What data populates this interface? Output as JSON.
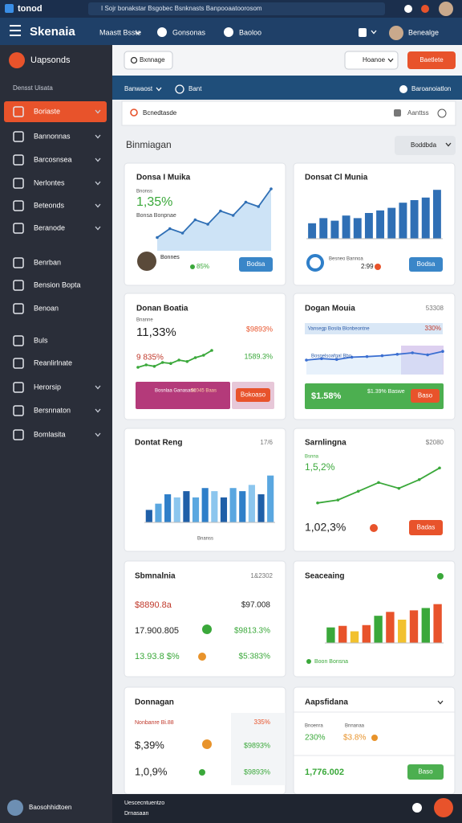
{
  "browser": {
    "tab": "tonod",
    "url": "I Sojr bonakstar Bsgobec Bsnknasts Banpooaatoorosom"
  },
  "header": {
    "brand": "Skenaia",
    "nav": [
      "Maastt Bsste",
      "Gonsonas",
      "Baoloo"
    ],
    "user": "Benealge"
  },
  "sidebar": {
    "app": "Uapsonds",
    "section": "Densst Uisata",
    "items": [
      "Boriaste",
      "Bannonnas",
      "Barcosnsea",
      "Nerlontes",
      "Beteonds",
      "Beranode",
      "Benrban",
      "Bension Bopta",
      "Benoan",
      "Buls",
      "Reanlirlnate",
      "Herorsip",
      "Bersnnaton",
      "Bomlasita"
    ],
    "footer_user": "Baosohhidtoen"
  },
  "toolbar": {
    "search": "Bxnnage",
    "filter": "Hoanoe",
    "action": "Baetlete"
  },
  "strip": {
    "left": "Banwaost",
    "mid": "Bant",
    "right": "Baroanoiatlon"
  },
  "search": {
    "placeholder": "Bcnedtasde",
    "right": "Aanttss"
  },
  "section": {
    "title": "Binmiagan",
    "filter": "Boddbda"
  },
  "cards": [
    {
      "title": "Donsa I Muika",
      "label": "Bnonss",
      "value": "1,35%",
      "sub": "Bonsa Bonpnae",
      "person": "Bonnes",
      "pct": "85%",
      "button": "Bodsa",
      "chart": {
        "values": [
          1.5,
          2.5,
          2,
          3.5,
          3,
          4.5,
          4,
          5.5,
          5,
          7
        ],
        "ylim": [
          0,
          8
        ],
        "color": "#2f6fb5"
      }
    },
    {
      "title": "Donsat Cl Munia",
      "legend": "Besneo Bannoa",
      "value": "2:99",
      "button": "Bodsa",
      "chart": {
        "values": [
          3,
          4,
          3.5,
          4.5,
          4,
          5,
          5.5,
          6,
          7,
          7.5,
          8,
          9.5
        ],
        "ylim": [
          0,
          10
        ],
        "color": "#2f6fb5"
      }
    },
    {
      "title": "Donan Boatia",
      "label": "Bnanne",
      "value": "11,33%",
      "right1": "$9893%",
      "value2": "9 835%",
      "right2": "1589.3%",
      "panel": "Bosnlaa Ganasans",
      "panel_value": "$2045 Baas",
      "button": "Bokoaso",
      "chart": {
        "values": [
          1,
          1.5,
          1.2,
          2,
          1.8,
          2.5,
          2.2,
          3,
          3.5,
          4.5
        ],
        "ylim": [
          0,
          5
        ],
        "color": "#3aa83a"
      }
    },
    {
      "title": "Dogan Mouia",
      "right": "53308",
      "row1": "Vansegp Bosila Blonbeontne",
      "row1_value": "330%",
      "row2": "Bosnelsoafgal Bbo",
      "panel": "$1.58%",
      "panel_value": "$1.39% Baswe",
      "button": "Baso",
      "chart": {
        "values": [
          5,
          5.5,
          5.2,
          6,
          6.2,
          6.5,
          7,
          7.5,
          6.8,
          8
        ],
        "ylim": [
          0,
          10
        ],
        "color": "#3b6fd1"
      }
    },
    {
      "title": "Dontat Reng",
      "right": "17/6",
      "xlabel": "Bnanss",
      "chart": {
        "values": [
          2,
          3,
          4.5,
          4,
          5,
          4,
          5.5,
          5,
          4,
          5.5,
          5,
          6,
          4.5,
          7.5
        ],
        "ylim": [
          0,
          9
        ],
        "colors": [
          "#1f5fa8",
          "#5aa7e0",
          "#2f7fc9",
          "#8cc6ee"
        ]
      }
    },
    {
      "title": "Sarnlingna",
      "right": "$2080",
      "label": "Bsnna",
      "value": "1,5,2%",
      "value2": "1,02,3%",
      "button": "Badas",
      "chart": {
        "values": [
          1,
          1.5,
          3,
          4.5,
          3.5,
          5,
          7
        ],
        "ylim": [
          0,
          8
        ],
        "color": "#3aa83a"
      }
    },
    {
      "title": "Sbmnalnia",
      "right": "1&2302",
      "rows": [
        [
          "$8890.8a",
          "$97.008"
        ],
        [
          "17.900.805",
          "$9813.3%"
        ],
        [
          "13.93.8 $%",
          "$5:383%"
        ]
      ]
    },
    {
      "title": "Seaceaing",
      "legend": "Boon Bonsna",
      "chart": {
        "values": [
          2,
          2.2,
          1.5,
          2.3,
          3.5,
          4,
          3,
          4.2,
          4.5,
          5
        ],
        "ylim": [
          0,
          6
        ],
        "colors": [
          "#3aa83a",
          "#e8532b",
          "#f2c12e",
          "#e8532b"
        ]
      }
    },
    {
      "title": "Donnagan",
      "label": "Nonbanre Bi.88",
      "label_value": "335%",
      "rows": [
        [
          "$,39%",
          "$9893%"
        ],
        [
          "1,0,9%",
          "$9893%"
        ]
      ]
    },
    {
      "title": "Aapsfidana",
      "label": "Bnoenra",
      "label2": "Bnnanaa",
      "value": "230%",
      "value2": "$3.8%",
      "total": "1,776.002",
      "button": "Baso"
    }
  ],
  "bottom": {
    "line1": "Uescecntuentzo",
    "line2": "Drnasaan"
  }
}
